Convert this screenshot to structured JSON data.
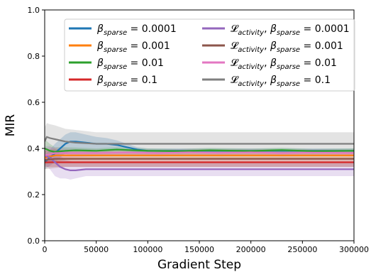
{
  "chart_data": {
    "type": "line",
    "xlabel": "Gradient Step",
    "ylabel": "MIR",
    "xlim": [
      0,
      300000
    ],
    "ylim": [
      0.0,
      1.0
    ],
    "xticks": [
      0,
      50000,
      100000,
      150000,
      200000,
      250000,
      300000
    ],
    "xtick_labels": [
      "0",
      "50000",
      "100000",
      "150000",
      "200000",
      "250000",
      "300000"
    ],
    "yticks": [
      0.0,
      0.2,
      0.4,
      0.6,
      0.8,
      1.0
    ],
    "ytick_labels": [
      "0.0",
      "0.2",
      "0.4",
      "0.6",
      "0.8",
      "1.0"
    ],
    "grid": false,
    "legend_placement": "upper-center, two columns",
    "series": [
      {
        "key": "b1e4",
        "legend_prefix": "",
        "beta_sub": "sparse",
        "value_text": " = 0.0001",
        "color": "#1f77b4",
        "x": [
          0,
          5000,
          10000,
          15000,
          20000,
          25000,
          30000,
          40000,
          50000,
          60000,
          70000,
          80000,
          90000,
          100000,
          150000,
          200000,
          250000,
          300000
        ],
        "y": [
          0.34,
          0.36,
          0.38,
          0.4,
          0.42,
          0.43,
          0.43,
          0.425,
          0.42,
          0.42,
          0.415,
          0.405,
          0.395,
          0.39,
          0.39,
          0.39,
          0.39,
          0.39
        ],
        "band": [
          0.03,
          0.035,
          0.04,
          0.04,
          0.04,
          0.04,
          0.04,
          0.035,
          0.03,
          0.025,
          0.02,
          0.015,
          0.01,
          0.01,
          0.01,
          0.01,
          0.01,
          0.01
        ]
      },
      {
        "key": "b1e3",
        "legend_prefix": "",
        "beta_sub": "sparse",
        "value_text": " = 0.001",
        "color": "#ff7f0e",
        "x": [
          0,
          10000,
          20000,
          50000,
          100000,
          150000,
          200000,
          250000,
          300000
        ],
        "y": [
          0.36,
          0.37,
          0.37,
          0.37,
          0.37,
          0.37,
          0.37,
          0.37,
          0.37
        ],
        "band": [
          0.03,
          0.03,
          0.02,
          0.015,
          0.015,
          0.015,
          0.015,
          0.015,
          0.015
        ]
      },
      {
        "key": "b1e2",
        "legend_prefix": "",
        "beta_sub": "sparse",
        "value_text": " = 0.01",
        "color": "#2ca02c",
        "x": [
          0,
          5000,
          10000,
          20000,
          30000,
          50000,
          70000,
          100000,
          130000,
          160000,
          200000,
          230000,
          260000,
          300000
        ],
        "y": [
          0.4,
          0.39,
          0.385,
          0.39,
          0.392,
          0.39,
          0.395,
          0.39,
          0.388,
          0.392,
          0.389,
          0.393,
          0.388,
          0.39
        ],
        "band": [
          0.04,
          0.03,
          0.02,
          0.015,
          0.012,
          0.01,
          0.01,
          0.01,
          0.01,
          0.01,
          0.01,
          0.01,
          0.01,
          0.01
        ]
      },
      {
        "key": "b1e1",
        "legend_prefix": "",
        "beta_sub": "sparse",
        "value_text": " = 0.1",
        "color": "#d62728",
        "x": [
          0,
          10000,
          20000,
          50000,
          100000,
          150000,
          200000,
          250000,
          300000
        ],
        "y": [
          0.34,
          0.34,
          0.34,
          0.34,
          0.34,
          0.34,
          0.34,
          0.34,
          0.34
        ],
        "band": [
          0.02,
          0.02,
          0.02,
          0.02,
          0.02,
          0.02,
          0.02,
          0.02,
          0.02
        ]
      },
      {
        "key": "a1e4",
        "legend_prefix": "𝓛",
        "beta_sub": "sparse",
        "value_text": " = 0.0001",
        "color": "#9467bd",
        "x": [
          0,
          5000,
          10000,
          15000,
          20000,
          25000,
          30000,
          40000,
          50000,
          100000,
          150000,
          200000,
          250000,
          300000
        ],
        "y": [
          0.37,
          0.36,
          0.34,
          0.32,
          0.31,
          0.305,
          0.305,
          0.31,
          0.31,
          0.31,
          0.31,
          0.31,
          0.31,
          0.31
        ],
        "band": [
          0.04,
          0.05,
          0.06,
          0.05,
          0.04,
          0.04,
          0.035,
          0.03,
          0.03,
          0.03,
          0.03,
          0.03,
          0.03,
          0.03
        ]
      },
      {
        "key": "a1e3",
        "legend_prefix": "𝓛",
        "beta_sub": "sparse",
        "value_text": " = 0.001",
        "color": "#8c564b",
        "x": [
          0,
          10000,
          20000,
          50000,
          100000,
          150000,
          200000,
          250000,
          300000
        ],
        "y": [
          0.35,
          0.355,
          0.355,
          0.355,
          0.355,
          0.355,
          0.355,
          0.355,
          0.355
        ],
        "band": [
          0.04,
          0.04,
          0.035,
          0.035,
          0.035,
          0.035,
          0.035,
          0.035,
          0.035
        ]
      },
      {
        "key": "a1e2",
        "legend_prefix": "𝓛",
        "beta_sub": "sparse",
        "value_text": " = 0.01",
        "color": "#e377c2",
        "x": [
          0,
          5000,
          10000,
          20000,
          50000,
          80000,
          110000,
          140000,
          170000,
          200000,
          230000,
          260000,
          300000
        ],
        "y": [
          0.37,
          0.375,
          0.38,
          0.38,
          0.38,
          0.382,
          0.38,
          0.383,
          0.381,
          0.383,
          0.38,
          0.382,
          0.38
        ],
        "band": [
          0.03,
          0.03,
          0.025,
          0.02,
          0.015,
          0.015,
          0.015,
          0.015,
          0.015,
          0.015,
          0.015,
          0.015,
          0.015
        ]
      },
      {
        "key": "a1e1",
        "legend_prefix": "𝓛",
        "beta_sub": "sparse",
        "value_text": " = 0.1",
        "color": "#7f7f7f",
        "x": [
          0,
          2000,
          5000,
          10000,
          20000,
          30000,
          50000,
          100000,
          150000,
          200000,
          250000,
          300000
        ],
        "y": [
          0.43,
          0.45,
          0.445,
          0.44,
          0.43,
          0.425,
          0.42,
          0.42,
          0.42,
          0.42,
          0.42,
          0.42
        ],
        "band": [
          0.06,
          0.06,
          0.06,
          0.06,
          0.055,
          0.055,
          0.05,
          0.05,
          0.05,
          0.05,
          0.05,
          0.05
        ]
      }
    ]
  }
}
